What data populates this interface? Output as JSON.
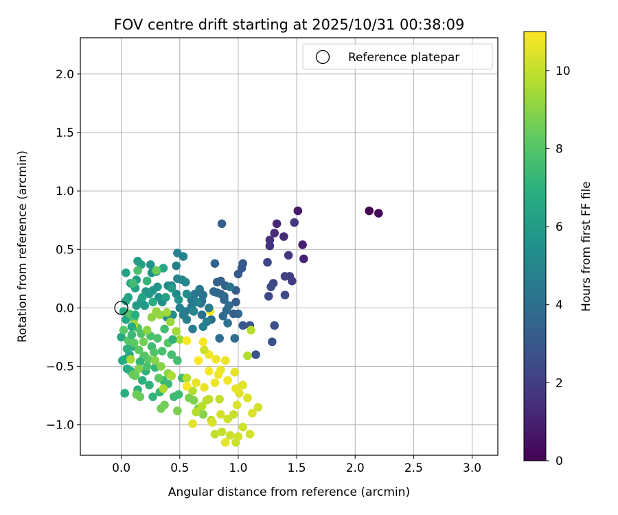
{
  "chart_data": {
    "type": "scatter",
    "title": "FOV centre drift starting at 2025/10/31 00:38:09",
    "xlabel": "Angular distance from reference (arcmin)",
    "ylabel": "Rotation from reference (arcmin)",
    "xlim": [
      -0.35,
      3.22
    ],
    "ylim": [
      -1.26,
      2.31
    ],
    "xticks": [
      0.0,
      0.5,
      1.0,
      1.5,
      2.0,
      2.5,
      3.0
    ],
    "xtick_labels": [
      "0.0",
      "0.5",
      "1.0",
      "1.5",
      "2.0",
      "2.5",
      "3.0"
    ],
    "yticks": [
      -1.0,
      -0.5,
      0.0,
      0.5,
      1.0,
      1.5,
      2.0
    ],
    "ytick_labels": [
      "−1.0",
      "−0.5",
      "0.0",
      "0.5",
      "1.0",
      "1.5",
      "2.0"
    ],
    "grid": true,
    "legend": {
      "position": "top-right",
      "label": "Reference platepar"
    },
    "reference_point": {
      "x": 0.0,
      "y": 0.0
    },
    "colorbar": {
      "label": "Hours from first FF file",
      "colormap": "viridis",
      "range": [
        0,
        11
      ],
      "ticks": [
        0,
        2,
        4,
        6,
        8,
        10
      ],
      "tick_labels": [
        "0",
        "2",
        "4",
        "6",
        "8",
        "10"
      ]
    },
    "points": [
      [
        2.12,
        0.83,
        0.0
      ],
      [
        2.2,
        0.81,
        0.2
      ],
      [
        1.51,
        0.83,
        0.8
      ],
      [
        1.55,
        0.54,
        1.0
      ],
      [
        1.56,
        0.42,
        1.1
      ],
      [
        1.33,
        0.72,
        1.2
      ],
      [
        1.39,
        0.61,
        1.3
      ],
      [
        1.31,
        0.64,
        1.4
      ],
      [
        1.27,
        0.58,
        1.5
      ],
      [
        1.27,
        0.53,
        1.6
      ],
      [
        1.48,
        0.73,
        1.7
      ],
      [
        1.43,
        0.45,
        1.8
      ],
      [
        1.46,
        0.23,
        1.9
      ],
      [
        1.44,
        0.27,
        2.0
      ],
      [
        1.4,
        0.27,
        2.1
      ],
      [
        1.3,
        0.21,
        2.2
      ],
      [
        1.25,
        0.39,
        2.3
      ],
      [
        1.4,
        0.11,
        2.4
      ],
      [
        1.26,
        0.1,
        2.4
      ],
      [
        1.28,
        0.18,
        2.5
      ],
      [
        1.31,
        -0.15,
        2.6
      ],
      [
        1.29,
        -0.29,
        2.7
      ],
      [
        1.15,
        -0.4,
        2.8
      ],
      [
        1.1,
        -0.15,
        2.9
      ],
      [
        1.04,
        -0.15,
        3.0
      ],
      [
        1.03,
        0.34,
        3.0
      ],
      [
        1.04,
        0.38,
        3.1
      ],
      [
        1.0,
        0.29,
        3.1
      ],
      [
        0.98,
        0.15,
        3.2
      ],
      [
        0.98,
        0.05,
        3.2
      ],
      [
        0.89,
        0.19,
        3.3
      ],
      [
        0.85,
        0.23,
        3.3
      ],
      [
        0.82,
        0.22,
        3.4
      ],
      [
        0.86,
        0.72,
        3.4
      ],
      [
        0.8,
        0.38,
        3.5
      ],
      [
        0.82,
        0.13,
        3.5
      ],
      [
        0.79,
        0.14,
        3.6
      ],
      [
        0.88,
        0.1,
        3.6
      ],
      [
        0.88,
        0.07,
        3.7
      ],
      [
        0.9,
        -0.02,
        3.7
      ],
      [
        0.87,
        -0.07,
        3.8
      ],
      [
        1.0,
        -0.05,
        3.8
      ],
      [
        0.97,
        -0.26,
        3.9
      ],
      [
        0.84,
        -0.26,
        3.9
      ],
      [
        0.77,
        -0.1,
        4.0
      ],
      [
        0.69,
        -0.06,
        4.0
      ],
      [
        0.68,
        0.04,
        4.1
      ],
      [
        0.69,
        0.06,
        4.1
      ],
      [
        0.7,
        0.11,
        4.2
      ],
      [
        0.67,
        0.16,
        4.3
      ],
      [
        0.63,
        0.12,
        4.3
      ],
      [
        0.6,
        0.07,
        4.4
      ],
      [
        0.6,
        0.01,
        4.4
      ],
      [
        0.55,
        -0.03,
        4.5
      ],
      [
        0.53,
        -0.06,
        4.5
      ],
      [
        0.56,
        -0.1,
        4.6
      ],
      [
        0.61,
        -0.18,
        4.6
      ],
      [
        0.7,
        -0.16,
        4.7
      ],
      [
        0.73,
        -0.12,
        4.7
      ],
      [
        0.5,
        0.0,
        4.8
      ],
      [
        0.47,
        0.36,
        4.8
      ],
      [
        0.48,
        0.47,
        4.9
      ],
      [
        0.53,
        0.44,
        4.9
      ],
      [
        0.48,
        0.25,
        5.0
      ],
      [
        0.52,
        0.24,
        5.0
      ],
      [
        0.55,
        0.22,
        5.1
      ],
      [
        0.43,
        0.19,
        5.1
      ],
      [
        0.4,
        0.19,
        5.2
      ],
      [
        0.47,
        0.12,
        5.2
      ],
      [
        0.44,
        -0.06,
        5.3
      ],
      [
        0.39,
        -0.08,
        5.3
      ],
      [
        0.35,
        0.05,
        5.4
      ],
      [
        0.32,
        0.09,
        5.5
      ],
      [
        0.3,
        0.31,
        5.5
      ],
      [
        0.25,
        0.37,
        5.6
      ],
      [
        0.26,
        0.3,
        5.6
      ],
      [
        0.31,
        0.18,
        5.7
      ],
      [
        0.27,
        0.15,
        5.7
      ],
      [
        0.24,
        0.12,
        5.8
      ],
      [
        0.21,
        0.14,
        5.8
      ],
      [
        0.2,
        0.02,
        5.9
      ],
      [
        0.17,
        0.06,
        5.9
      ],
      [
        0.13,
        0.02,
        6.0
      ],
      [
        0.14,
        0.4,
        6.0
      ],
      [
        0.17,
        0.37,
        6.1
      ],
      [
        0.13,
        0.24,
        6.1
      ],
      [
        0.12,
        0.17,
        6.2
      ],
      [
        0.08,
        0.21,
        6.2
      ],
      [
        0.04,
        0.3,
        6.3
      ],
      [
        0.06,
        0.09,
        6.3
      ],
      [
        0.04,
        0.06,
        6.4
      ],
      [
        0.02,
        -0.03,
        6.5
      ],
      [
        0.04,
        -0.1,
        6.5
      ],
      [
        0.0,
        -0.25,
        6.6
      ],
      [
        0.01,
        -0.45,
        6.6
      ],
      [
        0.03,
        -0.44,
        6.7
      ],
      [
        0.07,
        -0.4,
        6.7
      ],
      [
        0.1,
        -0.33,
        6.8
      ],
      [
        0.05,
        -0.52,
        6.8
      ],
      [
        0.08,
        -0.54,
        6.9
      ],
      [
        0.03,
        -0.73,
        6.9
      ],
      [
        0.14,
        -0.7,
        7.0
      ],
      [
        0.18,
        -0.62,
        7.0
      ],
      [
        0.24,
        -0.66,
        7.1
      ],
      [
        0.21,
        -0.54,
        7.1
      ],
      [
        0.29,
        -0.51,
        7.2
      ],
      [
        0.27,
        -0.76,
        7.2
      ],
      [
        0.33,
        -0.72,
        7.3
      ],
      [
        0.36,
        -0.62,
        7.3
      ],
      [
        0.4,
        -0.65,
        7.4
      ],
      [
        0.45,
        -0.76,
        7.4
      ],
      [
        0.49,
        -0.74,
        7.5
      ],
      [
        0.52,
        -0.6,
        7.6
      ],
      [
        0.48,
        -0.45,
        7.6
      ],
      [
        0.43,
        -0.4,
        7.7
      ],
      [
        0.35,
        -0.37,
        7.7
      ],
      [
        0.31,
        -0.26,
        7.8
      ],
      [
        0.25,
        -0.24,
        7.8
      ],
      [
        0.17,
        -0.22,
        7.9
      ],
      [
        0.14,
        -0.17,
        7.9
      ],
      [
        0.11,
        -0.09,
        8.0
      ],
      [
        0.07,
        -0.05,
        8.0
      ],
      [
        0.02,
        -0.19,
        8.1
      ],
      [
        0.06,
        -0.28,
        8.1
      ],
      [
        0.11,
        -0.3,
        8.2
      ],
      [
        0.15,
        -0.36,
        8.2
      ],
      [
        0.2,
        -0.41,
        8.3
      ],
      [
        0.23,
        -0.44,
        8.3
      ],
      [
        0.1,
        -0.57,
        8.4
      ],
      [
        0.16,
        -0.76,
        8.5
      ],
      [
        0.13,
        -0.74,
        8.5
      ],
      [
        0.34,
        -0.86,
        8.6
      ],
      [
        0.37,
        -0.83,
        8.6
      ],
      [
        0.48,
        -0.88,
        8.7
      ],
      [
        0.58,
        -0.77,
        8.7
      ],
      [
        0.62,
        -0.79,
        8.8
      ],
      [
        0.66,
        -0.86,
        8.8
      ],
      [
        0.7,
        -0.91,
        8.9
      ],
      [
        0.29,
        -0.45,
        8.9
      ],
      [
        0.34,
        -0.5,
        9.0
      ],
      [
        0.4,
        -0.56,
        9.0
      ],
      [
        0.22,
        -0.19,
        9.1
      ],
      [
        0.26,
        -0.08,
        9.1
      ],
      [
        0.3,
        -0.03,
        9.2
      ],
      [
        0.33,
        -0.06,
        9.2
      ],
      [
        0.39,
        -0.04,
        9.3
      ],
      [
        0.42,
        -0.12,
        9.3
      ],
      [
        0.47,
        -0.2,
        9.4
      ],
      [
        0.5,
        -0.27,
        9.4
      ],
      [
        0.11,
        -0.14,
        9.5
      ],
      [
        0.08,
        -0.44,
        9.5
      ],
      [
        0.36,
        -0.69,
        9.6
      ],
      [
        0.43,
        -0.58,
        9.6
      ],
      [
        0.56,
        -0.6,
        9.7
      ],
      [
        0.61,
        -0.71,
        9.7
      ],
      [
        0.64,
        -0.89,
        9.8
      ],
      [
        0.69,
        -0.84,
        9.8
      ],
      [
        0.73,
        -0.79,
        9.9
      ],
      [
        0.77,
        -0.96,
        9.9
      ],
      [
        0.8,
        -1.08,
        10.0
      ],
      [
        0.86,
        -1.06,
        10.0
      ],
      [
        0.93,
        -1.09,
        10.1
      ],
      [
        0.98,
        -1.15,
        10.1
      ],
      [
        1.0,
        -1.1,
        10.2
      ],
      [
        1.04,
        -1.02,
        10.2
      ],
      [
        1.1,
        -1.08,
        10.3
      ],
      [
        1.17,
        -0.85,
        10.3
      ],
      [
        1.12,
        -0.9,
        10.4
      ],
      [
        1.08,
        -0.77,
        10.4
      ],
      [
        1.01,
        -0.73,
        10.5
      ],
      [
        1.04,
        -0.66,
        10.5
      ],
      [
        0.98,
        -0.69,
        10.6
      ],
      [
        0.97,
        -0.55,
        10.6
      ],
      [
        0.89,
        -0.45,
        10.7
      ],
      [
        0.85,
        -0.53,
        10.7
      ],
      [
        0.81,
        -0.44,
        10.8
      ],
      [
        0.75,
        -0.4,
        10.8
      ],
      [
        0.7,
        -0.29,
        10.9
      ],
      [
        0.56,
        -0.28,
        10.9
      ],
      [
        0.76,
        -0.03,
        11.0
      ],
      [
        0.66,
        -0.45,
        11.0
      ],
      [
        0.75,
        -0.54,
        10.9
      ],
      [
        0.83,
        -0.57,
        10.8
      ],
      [
        0.91,
        -0.62,
        10.8
      ],
      [
        0.71,
        -0.68,
        10.7
      ],
      [
        0.64,
        -0.64,
        10.6
      ],
      [
        0.61,
        -0.99,
        10.5
      ],
      [
        0.78,
        -0.98,
        10.4
      ],
      [
        0.85,
        -0.91,
        10.3
      ],
      [
        0.91,
        -0.95,
        10.2
      ],
      [
        0.96,
        -0.91,
        10.1
      ],
      [
        0.84,
        -0.78,
        10.0
      ],
      [
        0.75,
        -0.78,
        9.9
      ],
      [
        0.89,
        -1.15,
        10.6
      ],
      [
        1.11,
        -0.19,
        9.8
      ],
      [
        1.08,
        -0.41,
        9.7
      ],
      [
        0.56,
        -0.67,
        10.9
      ],
      [
        0.8,
        -0.64,
        10.7
      ],
      [
        0.99,
        -0.83,
        10.4
      ],
      [
        0.71,
        -0.36,
        10.2
      ],
      [
        0.12,
        -0.58,
        8.4
      ],
      [
        0.19,
        -0.42,
        8.0
      ],
      [
        0.26,
        -0.33,
        7.6
      ],
      [
        0.09,
        -0.23,
        7.4
      ],
      [
        0.16,
        -0.46,
        7.2
      ],
      [
        0.22,
        -0.5,
        7.8
      ],
      [
        0.05,
        -0.35,
        7.0
      ],
      [
        0.28,
        -0.38,
        7.9
      ],
      [
        0.32,
        -0.6,
        8.2
      ],
      [
        0.19,
        -0.29,
        8.6
      ],
      [
        0.15,
        -0.52,
        8.8
      ],
      [
        0.4,
        -0.3,
        8.1
      ],
      [
        0.37,
        -0.18,
        7.5
      ],
      [
        0.44,
        -0.27,
        7.1
      ],
      [
        0.12,
        -0.06,
        6.9
      ],
      [
        0.18,
        0.09,
        6.4
      ],
      [
        0.22,
        0.23,
        7.2
      ],
      [
        0.1,
        0.21,
        7.6
      ],
      [
        0.09,
        -0.16,
        6.7
      ],
      [
        0.27,
        0.05,
        6.8
      ],
      [
        0.38,
        0.09,
        6.2
      ],
      [
        0.36,
        0.34,
        6.5
      ],
      [
        0.3,
        0.32,
        8.5
      ],
      [
        0.14,
        0.32,
        7.8
      ],
      [
        0.43,
        0.17,
        6.0
      ],
      [
        0.49,
        0.07,
        5.6
      ],
      [
        0.56,
        0.12,
        5.3
      ],
      [
        0.62,
        -0.03,
        5.0
      ],
      [
        0.65,
        0.05,
        4.9
      ],
      [
        0.75,
        0.0,
        4.6
      ],
      [
        0.93,
        0.18,
        4.2
      ],
      [
        0.92,
        0.02,
        3.9
      ],
      [
        0.85,
        0.12,
        3.7
      ],
      [
        0.91,
        -0.13,
        4.1
      ],
      [
        0.96,
        -0.05,
        3.3
      ]
    ]
  }
}
